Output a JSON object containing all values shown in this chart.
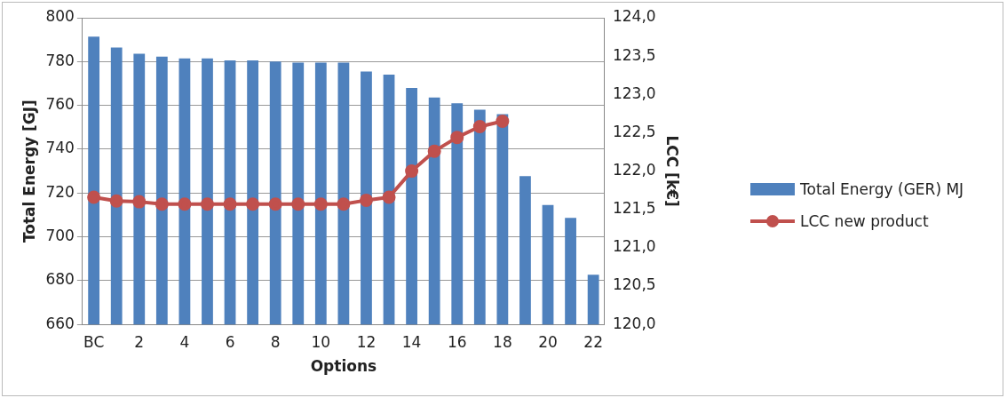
{
  "chart_data": {
    "type": "bar",
    "xlabel": "Options",
    "ylabel": "Total Energy [GJ]",
    "y2label": "LCC [k€]",
    "categories": [
      "BC",
      null,
      "2",
      null,
      "4",
      null,
      "6",
      null,
      "8",
      null,
      "10",
      null,
      "12",
      null,
      "14",
      null,
      "16",
      null,
      "18",
      null,
      "20",
      null,
      "22"
    ],
    "series": [
      {
        "name": "Total Energy (GER) MJ",
        "color": "#4f81bd",
        "values": [
          791.4,
          786.4,
          783.6,
          782.3,
          781.4,
          781.4,
          780.5,
          780.5,
          780,
          779.5,
          779.5,
          779.5,
          775.5,
          774,
          768,
          763.6,
          761,
          758,
          756,
          727.7,
          714.5,
          708.6,
          682.7
        ]
      },
      {
        "name": "LCC new product",
        "type": "line",
        "axis": "y2",
        "color": "#c0504d",
        "marker": "circle",
        "values": [
          121.66,
          121.61,
          121.6,
          121.57,
          121.57,
          121.57,
          121.57,
          121.57,
          121.57,
          121.57,
          121.57,
          121.57,
          121.62,
          121.66,
          122.0,
          122.26,
          122.44,
          122.58,
          122.65,
          null,
          null,
          null,
          null
        ]
      }
    ],
    "ylim": [
      660,
      800
    ],
    "yticks": [
      660,
      680,
      700,
      720,
      740,
      760,
      780,
      800
    ],
    "y2lim": [
      120,
      124
    ],
    "y2ticks": [
      {
        "value": 120,
        "label": "120,0"
      },
      {
        "value": 120.5,
        "label": "120,5"
      },
      {
        "value": 121,
        "label": "121,0"
      },
      {
        "value": 121.5,
        "label": "121,5"
      },
      {
        "value": 122,
        "label": "122,0"
      },
      {
        "value": 122.5,
        "label": "122,5"
      },
      {
        "value": 123,
        "label": "123,0"
      },
      {
        "value": 123.5,
        "label": "123,5"
      },
      {
        "value": 124,
        "label": "124,0"
      }
    ],
    "grid": "y",
    "legend": "right"
  }
}
